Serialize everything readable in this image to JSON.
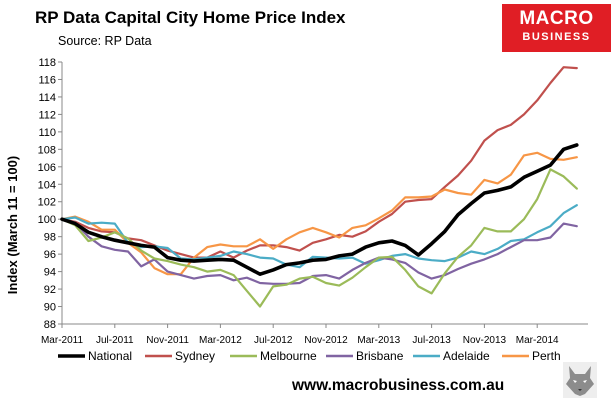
{
  "header": {
    "title": "RP Data Capital City Home Price Index",
    "subtitle": "Source: RP Data"
  },
  "brand": {
    "line1": "MACRO",
    "line2": "BUSINESS",
    "color": "#e01e25"
  },
  "footer": {
    "url": "www.macrobusiness.com.au",
    "icon": "wolf-icon"
  },
  "chart_data": {
    "type": "line",
    "title": "RP Data Capital City Home Price Index",
    "subtitle": "Source: RP Data",
    "ylabel": "Index (March 11 = 100)",
    "xlabel": "",
    "ylim": [
      88,
      118
    ],
    "ytick_step": 2,
    "x_tick_labels": [
      "Mar-2011",
      "Jul-2011",
      "Nov-2011",
      "Mar-2012",
      "Jul-2012",
      "Nov-2012",
      "Mar-2013",
      "Jul-2013",
      "Nov-2013",
      "Mar-2014"
    ],
    "x_start": "Mar-2011",
    "x": [
      "Mar-2011",
      "Apr-2011",
      "May-2011",
      "Jun-2011",
      "Jul-2011",
      "Aug-2011",
      "Sep-2011",
      "Oct-2011",
      "Nov-2011",
      "Dec-2011",
      "Jan-2012",
      "Feb-2012",
      "Mar-2012",
      "Apr-2012",
      "May-2012",
      "Jun-2012",
      "Jul-2012",
      "Aug-2012",
      "Sep-2012",
      "Oct-2012",
      "Nov-2012",
      "Dec-2012",
      "Jan-2013",
      "Feb-2013",
      "Mar-2013",
      "Apr-2013",
      "May-2013",
      "Jun-2013",
      "Jul-2013",
      "Aug-2013",
      "Sep-2013",
      "Oct-2013",
      "Nov-2013",
      "Dec-2013",
      "Jan-2014",
      "Feb-2014",
      "Mar-2014",
      "Apr-2014",
      "May-2014",
      "Jun-2014"
    ],
    "grid": false,
    "legend_position": "bottom",
    "series": [
      {
        "name": "National",
        "color": "#000000",
        "width": 3.6,
        "values": [
          100,
          99.5,
          98.5,
          98,
          97.6,
          97.3,
          97,
          96.8,
          95.6,
          95.3,
          95.2,
          95.3,
          95.4,
          95.3,
          94.5,
          93.7,
          94.2,
          94.8,
          95,
          95.3,
          95.4,
          95.8,
          96,
          96.8,
          97.3,
          97.5,
          97,
          95.9,
          97.2,
          98.6,
          100.5,
          101.8,
          103,
          103.3,
          103.7,
          104.8,
          105.5,
          106.2,
          108,
          108.5
        ]
      },
      {
        "name": "Sydney",
        "color": "#c0504d",
        "width": 2.2,
        "values": [
          100,
          99.7,
          99,
          98.6,
          98.5,
          97.8,
          97.6,
          97,
          96.4,
          96,
          95.6,
          95.6,
          96.3,
          95.6,
          96.4,
          97,
          97,
          96.8,
          96.4,
          97.3,
          97.7,
          98.2,
          98,
          98.6,
          99.7,
          100.6,
          102,
          102.2,
          102.3,
          103.7,
          105,
          106.7,
          109,
          110.2,
          110.8,
          112,
          113.6,
          115.6,
          117.4,
          117.3
        ]
      },
      {
        "name": "Melbourne",
        "color": "#9bbb59",
        "width": 2.2,
        "values": [
          100,
          99.3,
          97.5,
          97.9,
          98.5,
          97.8,
          96.4,
          95.5,
          95.2,
          94.8,
          94.5,
          94,
          94.2,
          93.6,
          91.8,
          90,
          92.3,
          92.5,
          93.2,
          93.4,
          92.7,
          92.4,
          93.3,
          94.5,
          95.6,
          95.7,
          94.2,
          92.3,
          91.5,
          93.8,
          95.7,
          97,
          99,
          98.6,
          98.6,
          100,
          102.3,
          105.7,
          104.9,
          103.5
        ]
      },
      {
        "name": "Brisbane",
        "color": "#8064a2",
        "width": 2.2,
        "values": [
          100,
          99.6,
          98,
          96.9,
          96.5,
          96.3,
          94.6,
          95.4,
          94,
          93.6,
          93.2,
          93.5,
          93.6,
          93,
          93.3,
          92.7,
          92.6,
          92.6,
          92.7,
          93.5,
          93.6,
          93.2,
          94.2,
          95,
          95.6,
          95.4,
          95,
          93.9,
          93.2,
          93.6,
          94.3,
          94.9,
          95.4,
          96,
          96.8,
          97.6,
          97.6,
          97.9,
          99.5,
          99.2
        ]
      },
      {
        "name": "Adelaide",
        "color": "#4bacc6",
        "width": 2.2,
        "values": [
          100,
          100.2,
          99.5,
          99.6,
          99.5,
          97.3,
          96.8,
          96.9,
          96.7,
          95.5,
          95.4,
          95.6,
          95.8,
          96.3,
          96,
          95.6,
          95.5,
          94.8,
          94.5,
          95.7,
          95.6,
          95.5,
          95.6,
          94.9,
          95.3,
          95.8,
          96,
          95.5,
          95.3,
          95.2,
          95.6,
          96.3,
          96,
          96.6,
          97.5,
          97.7,
          98.5,
          99.2,
          100.7,
          101.6
        ]
      },
      {
        "name": "Perth",
        "color": "#f79646",
        "width": 2.2,
        "values": [
          100,
          100.3,
          99.7,
          98.8,
          98.8,
          97.3,
          96.2,
          94.4,
          93.7,
          93.7,
          95.6,
          96.8,
          97.1,
          96.9,
          96.9,
          97.7,
          96.6,
          97.7,
          98.5,
          99,
          98.5,
          97.9,
          99,
          99.3,
          100.1,
          101,
          102.5,
          102.5,
          102.6,
          103.4,
          103,
          102.8,
          104.5,
          104.1,
          105.1,
          107.3,
          107.6,
          106.9,
          106.8,
          107.1
        ]
      }
    ]
  }
}
